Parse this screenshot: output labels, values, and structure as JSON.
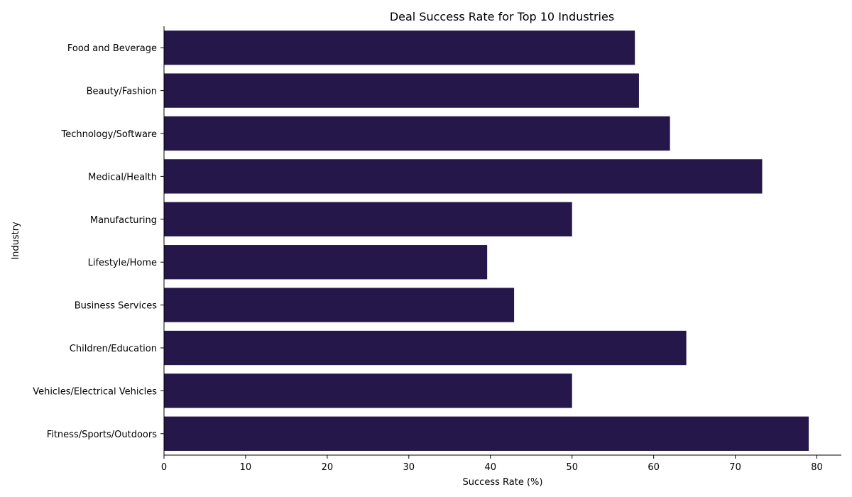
{
  "chart_data": {
    "type": "bar",
    "orientation": "horizontal",
    "title": "Deal Success Rate for Top 10 Industries",
    "xlabel": "Success Rate (%)",
    "ylabel": "Industry",
    "categories": [
      "Food and Beverage",
      "Beauty/Fashion",
      "Technology/Software",
      "Medical/Health",
      "Manufacturing",
      "Lifestyle/Home",
      "Business Services",
      "Children/Education",
      "Vehicles/Electrical Vehicles",
      "Fitness/Sports/Outdoors"
    ],
    "values": [
      57.7,
      58.2,
      62.0,
      73.3,
      50.0,
      39.6,
      42.9,
      64.0,
      50.0,
      79.0
    ],
    "xlim": [
      0,
      83
    ],
    "xticks": [
      0,
      10,
      20,
      30,
      40,
      50,
      60,
      70,
      80
    ],
    "grid": false,
    "bar_color": "#25174a"
  }
}
